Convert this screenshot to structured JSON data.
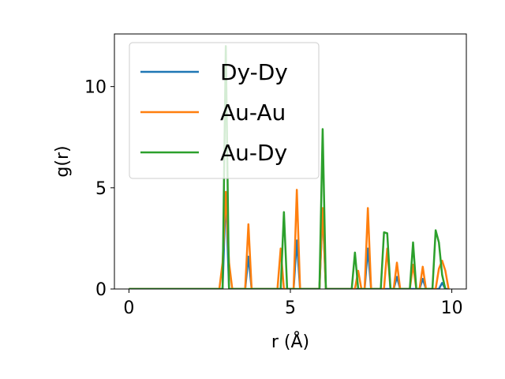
{
  "chart_data": {
    "type": "line",
    "xlabel": "r (Å)",
    "ylabel": "g(r)",
    "xlim": [
      -0.45,
      10.45
    ],
    "ylim": [
      0,
      12.6
    ],
    "xticks": [
      0,
      5,
      10
    ],
    "yticks": [
      0,
      5,
      10
    ],
    "grid": false,
    "legend_position": "top-left",
    "series": [
      {
        "name": "Dy-Dy",
        "color": "#1f77b4",
        "x": [
          0,
          2.9,
          3.0,
          3.1,
          3.6,
          3.7,
          3.8,
          5.1,
          5.2,
          5.3,
          5.9,
          6.0,
          6.1,
          7.3,
          7.4,
          7.5,
          8.2,
          8.3,
          8.4,
          9.0,
          9.1,
          9.2,
          9.6,
          9.7,
          9.8,
          9.9
        ],
        "y": [
          0,
          0,
          4.8,
          0,
          0,
          1.6,
          0,
          0,
          2.4,
          0,
          0,
          3.9,
          0,
          0,
          2.0,
          0,
          0,
          0.6,
          0,
          0,
          0.5,
          0,
          0,
          0.3,
          0,
          0
        ]
      },
      {
        "name": "Au-Au",
        "color": "#ff7f0e",
        "x": [
          0,
          2.8,
          2.9,
          3.0,
          3.1,
          3.2,
          3.6,
          3.7,
          3.8,
          4.6,
          4.7,
          4.8,
          5.1,
          5.2,
          5.3,
          5.9,
          6.0,
          6.1,
          7.0,
          7.1,
          7.2,
          7.3,
          7.4,
          7.5,
          7.9,
          8.0,
          8.1,
          8.2,
          8.3,
          8.4,
          8.7,
          8.8,
          8.9,
          9.0,
          9.1,
          9.2,
          9.5,
          9.6,
          9.7,
          9.8,
          9.9
        ],
        "y": [
          0,
          0,
          1.3,
          4.8,
          1.3,
          0,
          0,
          3.2,
          0,
          0,
          2.0,
          0,
          0,
          4.9,
          0,
          0,
          4.0,
          0,
          0,
          0.9,
          0,
          0,
          4.0,
          0,
          0,
          2.0,
          0,
          0,
          1.3,
          0,
          0,
          1.2,
          0,
          0,
          1.1,
          0,
          0,
          1.0,
          1.4,
          0.9,
          0
        ]
      },
      {
        "name": "Au-Dy",
        "color": "#2ca02c",
        "x": [
          0,
          2.9,
          3.0,
          3.1,
          4.7,
          4.8,
          4.9,
          5.9,
          6.0,
          6.1,
          6.9,
          7.0,
          7.1,
          7.8,
          7.9,
          8.0,
          8.1,
          8.7,
          8.8,
          8.9,
          9.4,
          9.5,
          9.6,
          9.7,
          9.8
        ],
        "y": [
          0,
          0,
          12.0,
          0,
          0,
          3.8,
          0,
          0,
          7.9,
          0,
          0,
          1.8,
          0,
          0,
          2.8,
          2.75,
          0,
          0,
          2.3,
          0,
          0,
          2.9,
          2.3,
          0.7,
          0
        ]
      }
    ]
  }
}
